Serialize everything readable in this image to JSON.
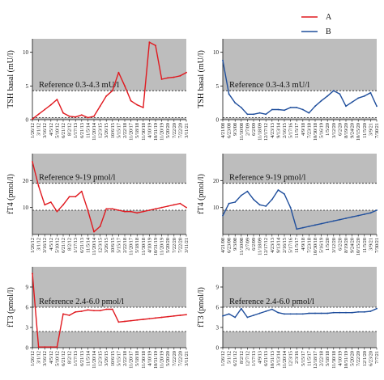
{
  "legend": {
    "entries": [
      {
        "label": "A",
        "color": "#e0191f"
      },
      {
        "label": "B",
        "color": "#1f4e9c"
      }
    ],
    "placement": "top-right"
  },
  "chart_data": [
    {
      "type": "line",
      "row": 0,
      "col": 0,
      "series_name": "A",
      "color": "#e0191f",
      "ylabel": "TSH basal (mU/l)",
      "ylim": [
        0,
        12
      ],
      "yticks": [
        0,
        5,
        10
      ],
      "reference": {
        "label": "Reference 0.3-4.3 mU/l",
        "low": 0.3,
        "high": 4.3
      },
      "x_labels": [
        "1/26/12",
        "3/1/12",
        "3/16/12",
        "4/5/12",
        "5/10/12",
        "6/21/12",
        "8/2/12",
        "1/17/13",
        "6/21/13",
        "11/5/14",
        "11/20/14",
        "12/3/15",
        "3/26/15",
        "10/6/15",
        "5/15/17",
        "2/22/18",
        "11/20/17",
        "5/18/18",
        "11/30/18",
        "4/10/19",
        "10/31/19",
        "11/20/19",
        "5/20/20",
        "7/22/20",
        "7/22/20",
        "3/11/21"
      ],
      "values": [
        0.1,
        0.8,
        1.5,
        2.2,
        3.0,
        1.0,
        0.5,
        0.4,
        0.7,
        0.3,
        0.5,
        2.0,
        3.5,
        4.3,
        7.0,
        5.0,
        2.8,
        2.2,
        1.8,
        11.5,
        11.0,
        6.0,
        6.2,
        6.3,
        6.5,
        7.0
      ]
    },
    {
      "type": "line",
      "row": 0,
      "col": 1,
      "series_name": "B",
      "color": "#1f4e9c",
      "ylabel": "TSH basal (mU/l)",
      "ylim": [
        0,
        12
      ],
      "yticks": [
        0,
        5,
        10
      ],
      "reference": {
        "label": "Reference 0.3-4.3 mU/l",
        "low": 0.3,
        "high": 4.3
      },
      "x_labels": [
        "4/21/08",
        "6/23/08",
        "9/3/08",
        "11/10/08",
        "2/7/09",
        "6/2/09",
        "11/18/09",
        "12/17/12",
        "4/23/13",
        "9/13/14",
        "2/16/15",
        "5/17/16",
        "11/5/17",
        "4/9/18",
        "7/23/18",
        "10/30/18",
        "5/16/19",
        "1/5/20",
        "3/12/20",
        "6/2/20",
        "8/19/20",
        "9/24/20",
        "10/15/20",
        "11/5/20",
        "3/9/21",
        "7/30/21"
      ],
      "values": [
        8.8,
        3.8,
        2.5,
        1.8,
        0.8,
        0.8,
        1.0,
        0.8,
        1.5,
        1.5,
        1.4,
        1.8,
        1.8,
        1.5,
        1.0,
        2.0,
        2.8,
        3.5,
        4.3,
        3.8,
        2.0,
        2.6,
        3.2,
        3.5,
        4.0,
        2.0
      ]
    },
    {
      "type": "line",
      "row": 1,
      "col": 0,
      "series_name": "A",
      "color": "#e0191f",
      "ylabel": "fT4 (pmol/l)",
      "ylim": [
        0,
        30
      ],
      "yticks": [
        10,
        20
      ],
      "reference": {
        "label": "Reference 9-19 pmol/l",
        "low": 9,
        "high": 19
      },
      "x_labels": [
        "1/26/12",
        "3/1/12",
        "3/16/12",
        "4/5/12",
        "5/10/12",
        "6/21/12",
        "8/2/12",
        "1/17/13",
        "6/21/13",
        "11/5/14",
        "11/20/14",
        "12/3/15",
        "3/26/15",
        "10/6/15",
        "5/15/17",
        "2/22/18",
        "11/20/17",
        "5/18/18",
        "11/30/18",
        "4/10/19",
        "10/31/19",
        "11/20/19",
        "5/20/20",
        "7/22/20",
        "7/22/20",
        "3/11/21"
      ],
      "values": [
        27.0,
        18.0,
        11.0,
        12.0,
        8.5,
        11.0,
        14.0,
        14.0,
        16.0,
        9.0,
        1.0,
        3.0,
        9.5,
        9.5,
        9.0,
        8.5,
        8.5,
        8.0,
        8.5,
        9.0,
        9.5,
        10.0,
        10.5,
        11.0,
        11.5,
        10.0
      ]
    },
    {
      "type": "line",
      "row": 1,
      "col": 1,
      "series_name": "B",
      "color": "#1f4e9c",
      "ylabel": "fT4 (pmol/l)",
      "ylim": [
        0,
        30
      ],
      "yticks": [
        10,
        20
      ],
      "reference": {
        "label": "Reference 9-19 pmol/l",
        "low": 9,
        "high": 19
      },
      "x_labels": [
        "4/21/08",
        "6/23/08",
        "9/3/08",
        "11/10/08",
        "2/7/09",
        "6/2/09",
        "11/18/09",
        "12/17/12",
        "4/23/13",
        "9/13/14",
        "2/16/15",
        "5/17/16",
        "11/5/17",
        "4/9/18",
        "7/23/18",
        "10/30/18",
        "5/16/19",
        "1/5/20",
        "3/12/20",
        "6/2/20",
        "8/19/20",
        "9/24/20",
        "10/15/20",
        "11/5/20",
        "3/9/21",
        "7/30/21"
      ],
      "values": [
        7.0,
        11.5,
        12.0,
        14.5,
        16.0,
        13.0,
        11.0,
        10.5,
        13.0,
        16.5,
        15.0,
        10.0,
        2.0,
        2.5,
        3.0,
        3.5,
        4.0,
        4.5,
        5.0,
        5.5,
        6.0,
        6.5,
        7.0,
        7.5,
        8.0,
        9.0
      ]
    },
    {
      "type": "line",
      "row": 2,
      "col": 0,
      "series_name": "A",
      "color": "#e0191f",
      "ylabel": "fT3 (pmol/l)",
      "ylim": [
        0,
        12
      ],
      "yticks": [
        0,
        3,
        6,
        9
      ],
      "reference": {
        "label": "Reference 2.4-6.0 pmol/l",
        "low": 2.4,
        "high": 6.0
      },
      "x_labels": [
        "1/26/12",
        "3/1/12",
        "3/16/12",
        "4/5/12",
        "5/10/12",
        "6/21/12",
        "8/2/12",
        "1/17/13",
        "6/21/13",
        "11/5/14",
        "11/20/14",
        "12/3/15",
        "3/26/15",
        "10/6/15",
        "5/15/17",
        "2/22/18",
        "11/20/17",
        "5/18/18",
        "11/30/18",
        "4/10/19",
        "10/31/19",
        "11/20/19",
        "5/20/20",
        "7/22/20",
        "7/22/20",
        "3/11/21"
      ],
      "values": [
        11.0,
        0.1,
        0.1,
        0.1,
        0.1,
        5.0,
        4.8,
        5.3,
        5.4,
        5.6,
        5.5,
        5.5,
        5.7,
        5.7,
        3.8,
        3.9,
        4.0,
        4.1,
        4.2,
        4.3,
        4.4,
        4.5,
        4.6,
        4.7,
        4.8,
        4.9
      ]
    },
    {
      "type": "line",
      "row": 2,
      "col": 1,
      "series_name": "B",
      "color": "#1f4e9c",
      "ylabel": "fT3 (pmol/l)",
      "ylim": [
        0,
        12
      ],
      "yticks": [
        0,
        3,
        6,
        9
      ],
      "reference": {
        "label": "Reference 2.4-6.0 pmol/l",
        "low": 2.4,
        "high": 6.0
      },
      "x_labels": [
        "1/26/12",
        "5/1/12",
        "6/21/12",
        "8/2/12",
        "12/7/12",
        "1/17/13",
        "4/9/13",
        "6/21/13",
        "10/31/13",
        "3/13/14",
        "11/20/14",
        "12/3/15",
        "2/3/16",
        "5/15/17",
        "11/5/17",
        "12/18/17",
        "2/22/18",
        "5/18/18",
        "11/30/18",
        "4/10/19",
        "10/31/19",
        "5/20/20",
        "7/22/20",
        "12/1/20",
        "6/23/20",
        "7/7/21"
      ],
      "values": [
        4.7,
        5.0,
        4.5,
        5.8,
        4.5,
        4.8,
        5.1,
        5.4,
        5.7,
        5.2,
        5.0,
        5.0,
        5.0,
        5.0,
        5.1,
        5.1,
        5.1,
        5.1,
        5.2,
        5.2,
        5.2,
        5.2,
        5.3,
        5.3,
        5.4,
        5.8
      ]
    }
  ]
}
